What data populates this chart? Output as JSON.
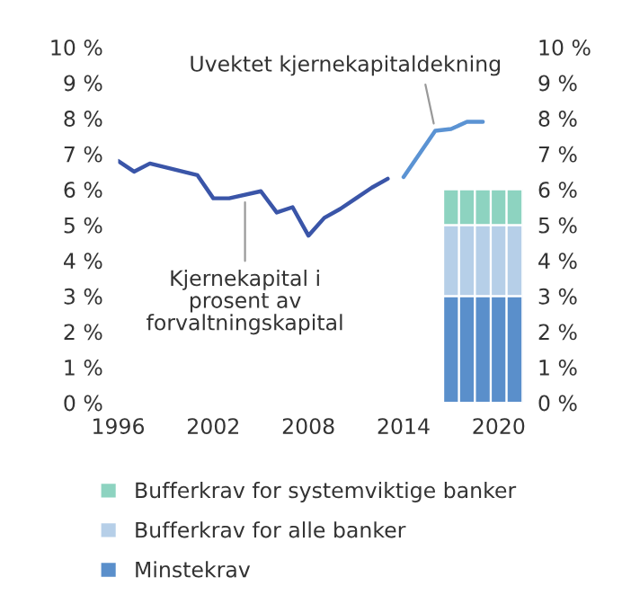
{
  "chart_data": {
    "type": "line",
    "x": [
      1996,
      1997,
      1998,
      2001,
      2002,
      2003,
      2005,
      2006,
      2007,
      2008,
      2009,
      2010,
      2011,
      2012,
      2013
    ],
    "series": [
      {
        "color": "#3a55a8",
        "values": [
          6.8,
          6.5,
          6.73,
          6.4,
          5.75,
          5.75,
          5.95,
          5.35,
          5.5,
          4.7,
          5.2,
          5.45,
          5.75,
          6.05,
          6.3
        ]
      },
      {
        "color": "#5b93d3",
        "x": [
          2014,
          2016,
          2017,
          2018,
          2019
        ],
        "values": [
          6.35,
          7.65,
          7.7,
          7.9,
          7.9
        ]
      },
      {
        "type": "bar",
        "name": "Minstekrav",
        "color": "#5a8fcb",
        "x": [
          2017,
          2018,
          2019,
          2020,
          2021
        ],
        "values": [
          3,
          3,
          3,
          3,
          3
        ]
      },
      {
        "type": "bar",
        "name": "Bufferkrav for alle banker",
        "color": "#b6cfe8",
        "x": [
          2017,
          2018,
          2019,
          2020,
          2021
        ],
        "values": [
          2,
          2,
          2,
          2,
          2
        ]
      },
      {
        "type": "bar",
        "name": "Bufferkrav for systemviktige banker",
        "color": "#8dd3c0",
        "x": [
          2017,
          2018,
          2019,
          2020,
          2021
        ],
        "values": [
          1,
          1,
          1,
          1,
          1
        ]
      }
    ],
    "stacked": true,
    "annotations": [
      {
        "text": "Uvektet kjernekapitaldekning",
        "x": 2016,
        "y": 7.65
      },
      {
        "text": "Kjernekapital i\nprosent av\nforvaltningskapital",
        "x": 2004,
        "y": 5.85
      }
    ],
    "xlim": [
      1996,
      2021.5
    ],
    "xticks": [
      1996,
      2002,
      2008,
      2014,
      2020
    ],
    "ylim": [
      0,
      10
    ],
    "yticks": [
      {
        "value": 0,
        "label": "0 %"
      },
      {
        "value": 1,
        "label": "1 %"
      },
      {
        "value": 2,
        "label": "2 %"
      },
      {
        "value": 3,
        "label": "3 %"
      },
      {
        "value": 4,
        "label": "4 %"
      },
      {
        "value": 5,
        "label": "5 %"
      },
      {
        "value": 6,
        "label": "6 %"
      },
      {
        "value": 7,
        "label": "7 %"
      },
      {
        "value": 8,
        "label": "8 %"
      },
      {
        "value": 9,
        "label": "9 %"
      },
      {
        "value": 10,
        "label": "10 %"
      }
    ],
    "y2lim": [
      0,
      10
    ],
    "y2ticks": [
      {
        "value": 0,
        "label": "0 %"
      },
      {
        "value": 1,
        "label": "1 %"
      },
      {
        "value": 2,
        "label": "2 %"
      },
      {
        "value": 3,
        "label": "3 %"
      },
      {
        "value": 4,
        "label": "4 %"
      },
      {
        "value": 5,
        "label": "5 %"
      },
      {
        "value": 6,
        "label": "6 %"
      },
      {
        "value": 7,
        "label": "7 %"
      },
      {
        "value": 8,
        "label": "8 %"
      },
      {
        "value": 9,
        "label": "9 %"
      },
      {
        "value": 10,
        "label": "10 %"
      }
    ],
    "grid": false,
    "legend": "bottom"
  }
}
